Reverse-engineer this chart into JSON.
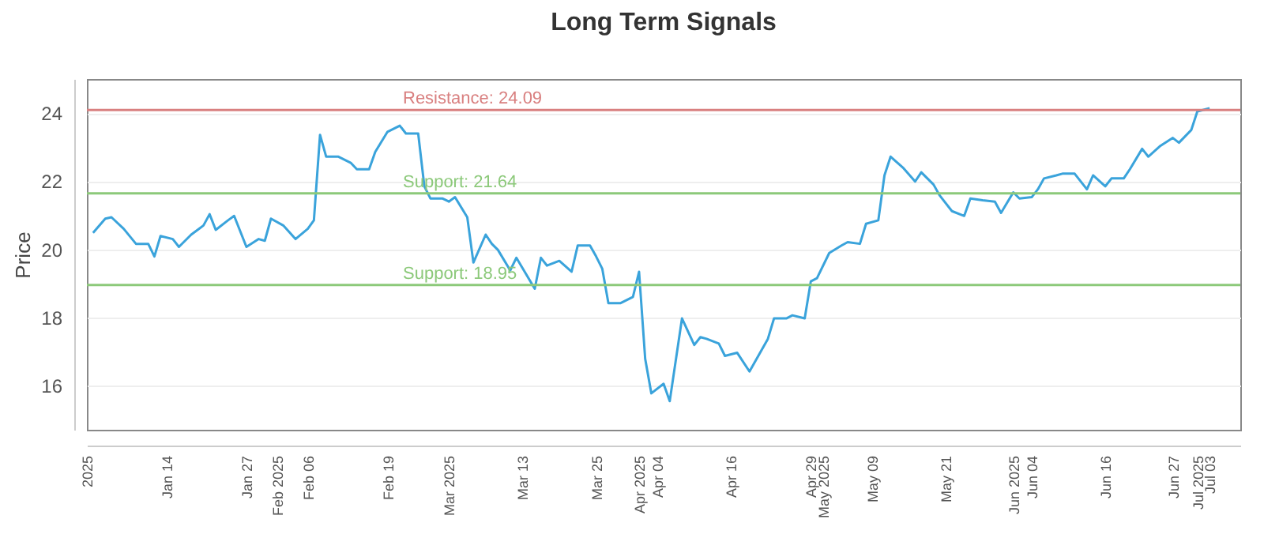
{
  "chart_data": {
    "type": "line",
    "title": "Long Term Signals",
    "ylabel": "Price",
    "x": [
      "2025-01-02",
      "2025-01-04",
      "2025-01-05",
      "2025-01-07",
      "2025-01-09",
      "2025-01-11",
      "2025-01-12",
      "2025-01-13",
      "2025-01-15",
      "2025-01-16",
      "2025-01-18",
      "2025-01-20",
      "2025-01-21",
      "2025-01-22",
      "2025-01-24",
      "2025-01-25",
      "2025-01-27",
      "2025-01-29",
      "2025-01-30",
      "2025-01-31",
      "2025-02-02",
      "2025-02-04",
      "2025-02-06",
      "2025-02-07",
      "2025-02-08",
      "2025-02-09",
      "2025-02-11",
      "2025-02-13",
      "2025-02-14",
      "2025-02-16",
      "2025-02-17",
      "2025-02-19",
      "2025-02-21",
      "2025-02-22",
      "2025-02-24",
      "2025-02-25",
      "2025-02-26",
      "2025-02-28",
      "2025-03-01",
      "2025-03-02",
      "2025-03-04",
      "2025-03-05",
      "2025-03-07",
      "2025-03-08",
      "2025-03-09",
      "2025-03-11",
      "2025-03-12",
      "2025-03-15",
      "2025-03-16",
      "2025-03-17",
      "2025-03-19",
      "2025-03-21",
      "2025-03-22",
      "2025-03-24",
      "2025-03-25",
      "2025-03-26",
      "2025-03-27",
      "2025-03-29",
      "2025-03-31",
      "2025-04-01",
      "2025-04-02",
      "2025-04-03",
      "2025-04-05",
      "2025-04-06",
      "2025-04-08",
      "2025-04-10",
      "2025-04-11",
      "2025-04-12",
      "2025-04-14",
      "2025-04-15",
      "2025-04-17",
      "2025-04-19",
      "2025-04-22",
      "2025-04-23",
      "2025-04-25",
      "2025-04-26",
      "2025-04-28",
      "2025-04-29",
      "2025-04-30",
      "2025-05-02",
      "2025-05-04",
      "2025-05-05",
      "2025-05-07",
      "2025-05-08",
      "2025-05-10",
      "2025-05-11",
      "2025-05-12",
      "2025-05-14",
      "2025-05-16",
      "2025-05-17",
      "2025-05-19",
      "2025-05-20",
      "2025-05-22",
      "2025-05-24",
      "2025-05-25",
      "2025-05-27",
      "2025-05-29",
      "2025-05-30",
      "2025-06-01",
      "2025-06-02",
      "2025-06-04",
      "2025-06-05",
      "2025-06-06",
      "2025-06-08",
      "2025-06-09",
      "2025-06-11",
      "2025-06-13",
      "2025-06-14",
      "2025-06-16",
      "2025-06-17",
      "2025-06-19",
      "2025-06-20",
      "2025-06-22",
      "2025-06-23",
      "2025-06-25",
      "2025-06-27",
      "2025-06-28",
      "2025-06-30",
      "2025-07-01",
      "2025-07-03"
    ],
    "series": [
      {
        "color": "#3aa3db",
        "values": [
          20.48,
          20.9,
          20.94,
          20.6,
          20.16,
          20.16,
          19.79,
          20.39,
          20.3,
          20.07,
          20.43,
          20.7,
          21.03,
          20.57,
          20.85,
          20.98,
          20.07,
          20.3,
          20.25,
          20.9,
          20.7,
          20.3,
          20.6,
          20.85,
          23.36,
          22.72,
          22.72,
          22.54,
          22.35,
          22.35,
          22.86,
          23.45,
          23.63,
          23.4,
          23.4,
          21.85,
          21.49,
          21.49,
          21.4,
          21.53,
          20.94,
          19.61,
          20.43,
          20.16,
          19.98,
          19.38,
          19.75,
          18.84,
          19.75,
          19.52,
          19.66,
          19.34,
          20.11,
          20.11,
          19.79,
          19.43,
          18.42,
          18.42,
          18.6,
          19.34,
          16.78,
          15.77,
          16.05,
          15.54,
          17.97,
          17.19,
          17.42,
          17.37,
          17.23,
          16.87,
          16.96,
          16.41,
          17.37,
          17.97,
          17.97,
          18.06,
          17.97,
          19.06,
          19.15,
          19.89,
          20.11,
          20.21,
          20.16,
          20.75,
          20.85,
          22.17,
          22.72,
          22.4,
          21.99,
          22.26,
          21.9,
          21.58,
          21.12,
          20.98,
          21.49,
          21.44,
          21.4,
          21.07,
          21.67,
          21.49,
          21.53,
          21.76,
          22.08,
          22.17,
          22.22,
          22.22,
          21.76,
          22.17,
          21.85,
          22.08,
          22.08,
          22.35,
          22.95,
          22.72,
          23.04,
          23.27,
          23.13,
          23.5,
          24.05,
          24.14
        ]
      }
    ],
    "xlim": [
      "2025-01-01",
      "2025-07-08"
    ],
    "xticks": [
      {
        "value": "2025-01-01",
        "label": "2025"
      },
      {
        "value": "2025-01-14",
        "label": "Jan 14"
      },
      {
        "value": "2025-01-27",
        "label": "Jan 27"
      },
      {
        "value": "2025-02-01",
        "label": "Feb 2025"
      },
      {
        "value": "2025-02-06",
        "label": "Feb 06"
      },
      {
        "value": "2025-02-19",
        "label": "Feb 19"
      },
      {
        "value": "2025-03-01",
        "label": "Mar 2025"
      },
      {
        "value": "2025-03-13",
        "label": "Mar 13"
      },
      {
        "value": "2025-03-25",
        "label": "Mar 25"
      },
      {
        "value": "2025-04-01",
        "label": "Apr 2025"
      },
      {
        "value": "2025-04-04",
        "label": "Apr 04"
      },
      {
        "value": "2025-04-16",
        "label": "Apr 16"
      },
      {
        "value": "2025-04-29",
        "label": "Apr 29"
      },
      {
        "value": "2025-05-01",
        "label": "May 2025"
      },
      {
        "value": "2025-05-09",
        "label": "May 09"
      },
      {
        "value": "2025-05-21",
        "label": "May 21"
      },
      {
        "value": "2025-06-01",
        "label": "Jun 2025"
      },
      {
        "value": "2025-06-04",
        "label": "Jun 04"
      },
      {
        "value": "2025-06-16",
        "label": "Jun 16"
      },
      {
        "value": "2025-06-27",
        "label": "Jun 27"
      },
      {
        "value": "2025-07-01",
        "label": "Jul 2025"
      },
      {
        "value": "2025-07-03",
        "label": "Jul 03"
      }
    ],
    "ylim": [
      14.7,
      25
    ],
    "yticks": [
      16,
      18,
      20,
      22,
      24
    ],
    "grid": "y",
    "ref_lines": [
      {
        "axis": "y",
        "value": 24.09,
        "label": "Resistance: 24.09",
        "color": "#d98080"
      },
      {
        "axis": "y",
        "value": 21.64,
        "label": "Support: 21.64",
        "color": "#8cc97a"
      },
      {
        "axis": "y",
        "value": 18.95,
        "label": "Support: 18.95",
        "color": "#8cc97a"
      }
    ]
  }
}
